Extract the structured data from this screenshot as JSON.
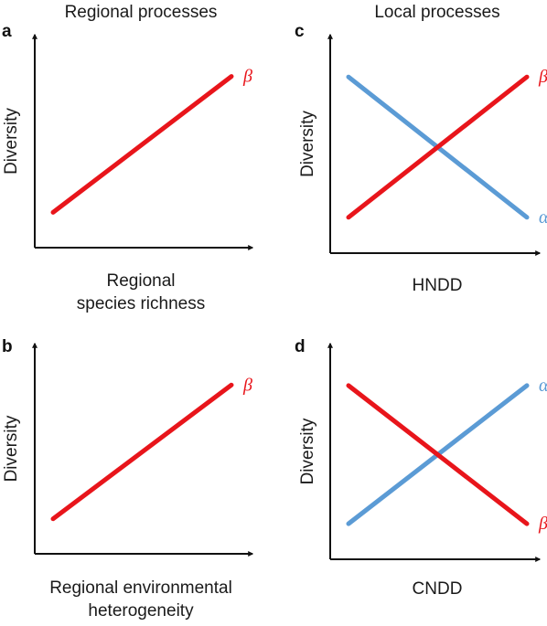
{
  "columns": {
    "left_title": "Regional processes",
    "right_title": "Local processes"
  },
  "colors": {
    "beta": "#e8151b",
    "alpha": "#5b9bd5",
    "axis": "#111111"
  },
  "chart_data": [
    {
      "panel": "a",
      "type": "line",
      "ylabel": "Diversity",
      "xlabel_lines": [
        "Regional",
        "species richness"
      ],
      "series": [
        {
          "name": "β",
          "color": "#e8151b",
          "start": 0.1,
          "end": 0.9
        }
      ]
    },
    {
      "panel": "b",
      "type": "line",
      "ylabel": "Diversity",
      "xlabel_lines": [
        "Regional environmental",
        "heterogeneity"
      ],
      "series": [
        {
          "name": "β",
          "color": "#e8151b",
          "start": 0.1,
          "end": 0.9
        }
      ]
    },
    {
      "panel": "c",
      "type": "line",
      "ylabel": "Diversity",
      "xlabel_lines": [
        "HNDD"
      ],
      "series": [
        {
          "name": "α",
          "color": "#5b9bd5",
          "start": 0.9,
          "end": 0.1
        },
        {
          "name": "β",
          "color": "#e8151b",
          "start": 0.1,
          "end": 0.9
        }
      ]
    },
    {
      "panel": "d",
      "type": "line",
      "ylabel": "Diversity",
      "xlabel_lines": [
        "CNDD"
      ],
      "series": [
        {
          "name": "α",
          "color": "#5b9bd5",
          "start": 0.1,
          "end": 0.9
        },
        {
          "name": "β",
          "color": "#e8151b",
          "start": 0.9,
          "end": 0.1
        }
      ]
    }
  ]
}
